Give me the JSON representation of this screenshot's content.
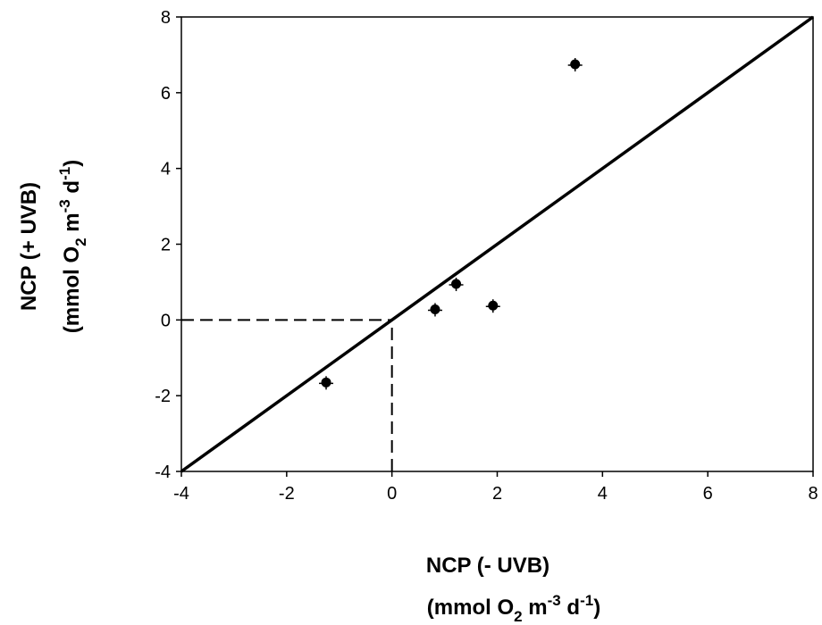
{
  "chart_data": {
    "type": "scatter",
    "xlim": [
      -4,
      8
    ],
    "ylim": [
      -4,
      8
    ],
    "xticks": [
      -4,
      -2,
      0,
      2,
      4,
      6,
      8
    ],
    "yticks": [
      -4,
      -2,
      0,
      2,
      4,
      6,
      8
    ],
    "xlabel_line1": "NCP (- UVB)",
    "ylabel_line1": "NCP (+ UVB)",
    "unit_label": {
      "open": "(mmol O",
      "o2_sub": "2",
      "m": " m",
      "m_sup": "-3",
      "d": " d",
      "d_sup": "-1",
      "close": ")"
    },
    "grid": false,
    "legend": "none",
    "points": [
      {
        "x": -1.25,
        "y": -1.65
      },
      {
        "x": 0.82,
        "y": 0.28
      },
      {
        "x": 1.22,
        "y": 0.95
      },
      {
        "x": 1.92,
        "y": 0.38
      },
      {
        "x": 3.48,
        "y": 6.75
      }
    ],
    "reference_line": {
      "style": "solid",
      "from": [
        -4,
        -4
      ],
      "to": [
        8,
        8
      ]
    },
    "dashed_lines": [
      {
        "from": [
          -4,
          0
        ],
        "to": [
          0,
          0
        ]
      },
      {
        "from": [
          0,
          -4
        ],
        "to": [
          0,
          0
        ]
      }
    ]
  }
}
